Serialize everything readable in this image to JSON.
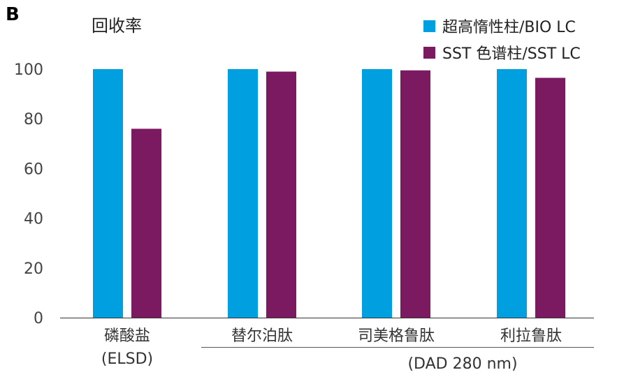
{
  "panel_label": "B",
  "chart_data": {
    "type": "bar",
    "title": "",
    "ylabel": "回收率",
    "xlabel": "",
    "ylim": [
      0,
      100
    ],
    "yticks": [
      0,
      20,
      40,
      60,
      80,
      100
    ],
    "grid": false,
    "legend_position": "top-right",
    "categories": [
      "磷酸盐",
      "替尔泊肽",
      "司美格鲁肽",
      "利拉鲁肽"
    ],
    "category_sublabels": [
      "(ELSD)",
      "",
      "",
      ""
    ],
    "group_label": "(DAD 280 nm)",
    "group_span": [
      "替尔泊肽",
      "利拉鲁肽"
    ],
    "series": [
      {
        "name": "超高惰性柱/BIO LC",
        "color": "#009FDF",
        "values": [
          100,
          100,
          100,
          100
        ]
      },
      {
        "name": "SST 色谱柱/SST LC",
        "color": "#7B1A61",
        "values": [
          76,
          99,
          99.5,
          96.5
        ]
      }
    ]
  }
}
